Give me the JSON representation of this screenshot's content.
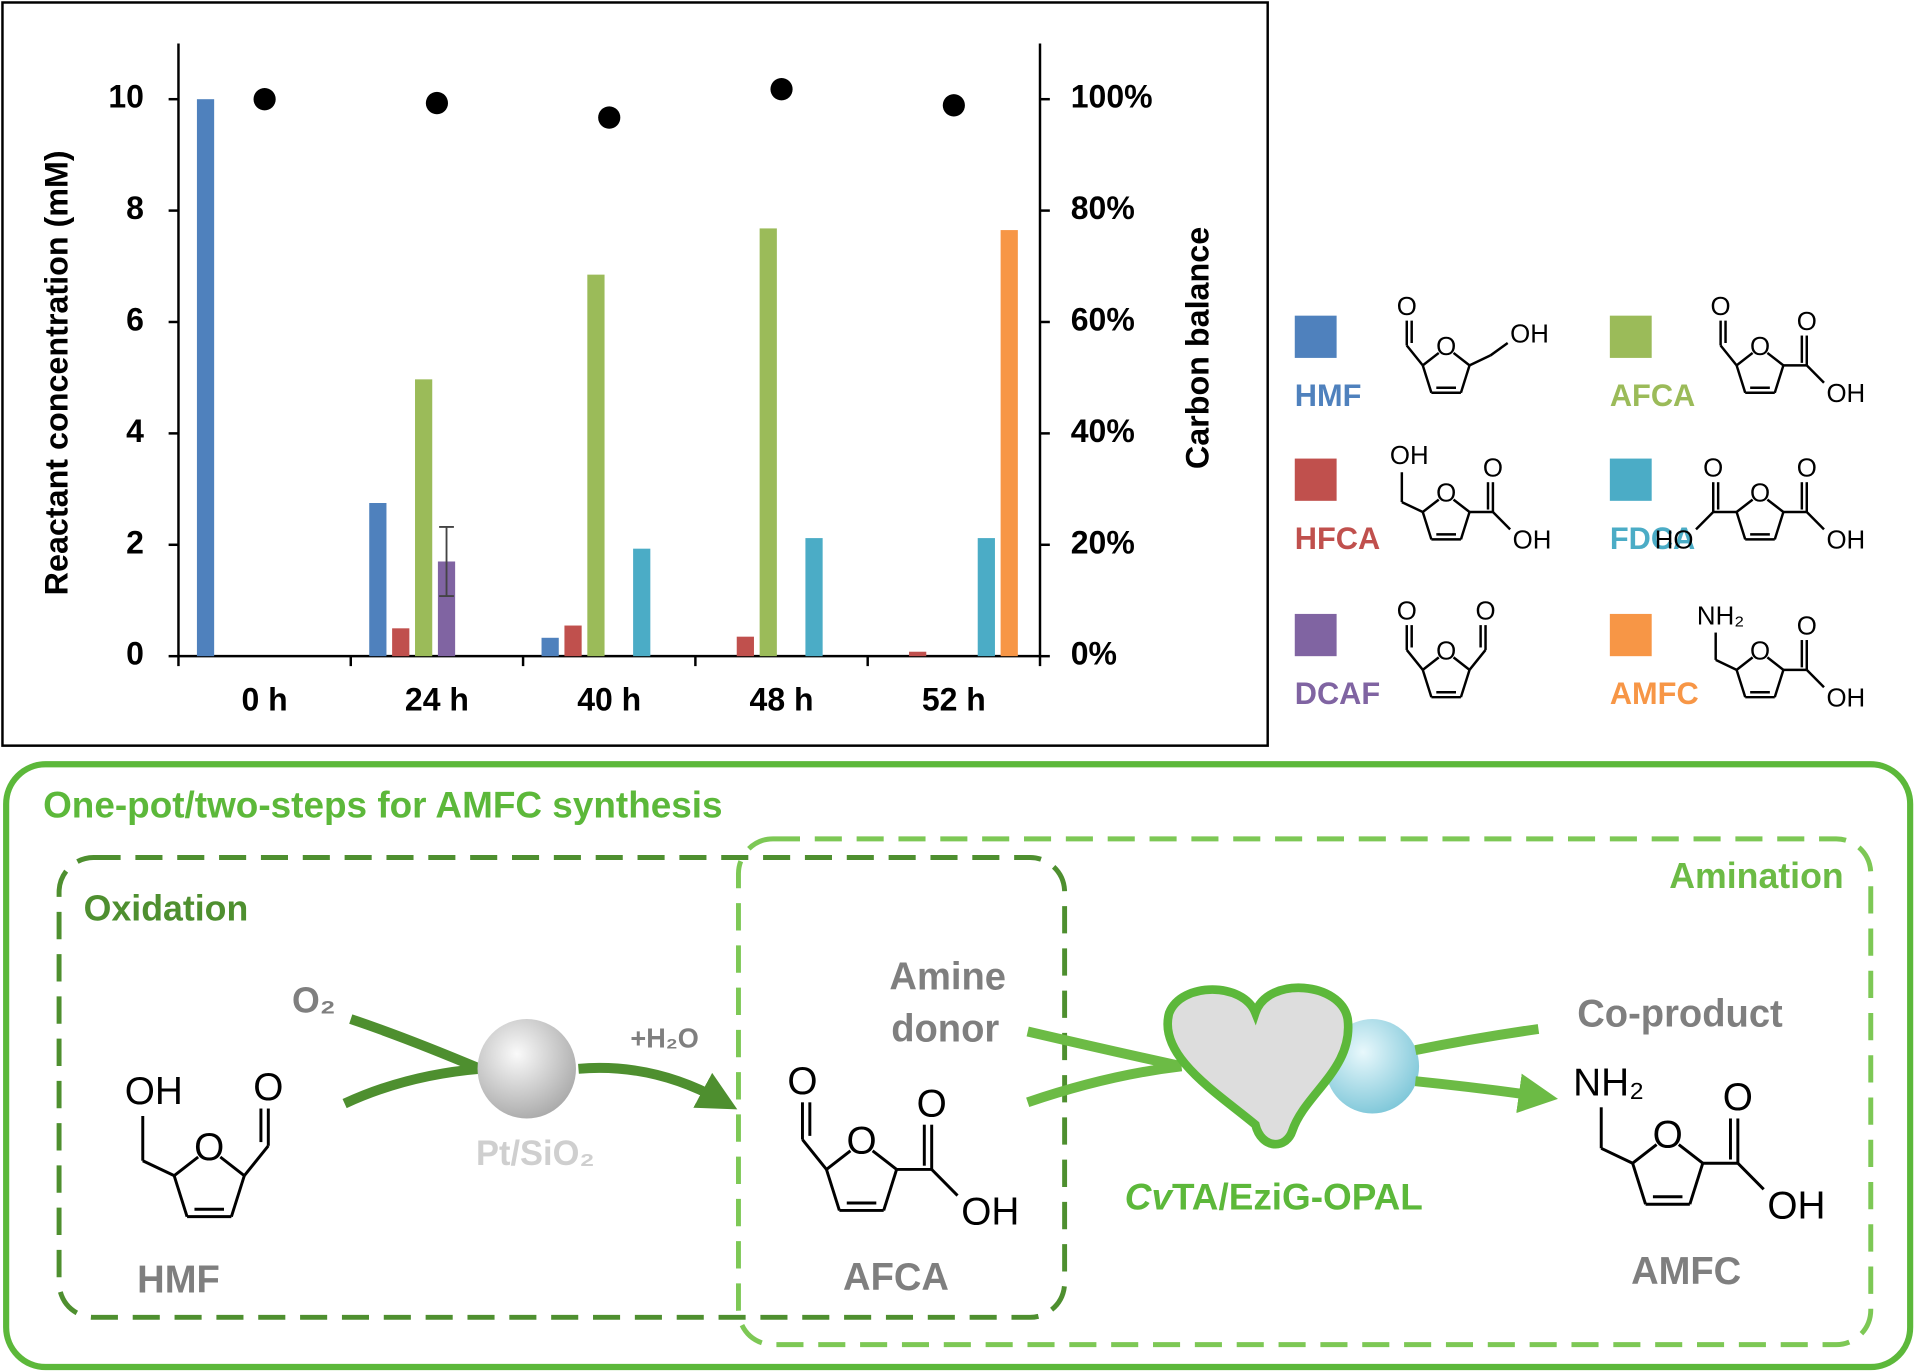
{
  "chart_data": {
    "type": "bar",
    "categories": [
      "0 h",
      "24 h",
      "40 h",
      "48 h",
      "52 h"
    ],
    "y_label": "Reactant concentration (mM)",
    "y2_label": "Carbon balance",
    "ylim": [
      0,
      11
    ],
    "yticks": [
      0,
      2,
      4,
      6,
      8,
      10
    ],
    "y2lim": [
      0,
      110
    ],
    "y2ticks": [
      {
        "value": 0,
        "label": "0%"
      },
      {
        "value": 20,
        "label": "20%"
      },
      {
        "value": 40,
        "label": "40%"
      },
      {
        "value": 60,
        "label": "60%"
      },
      {
        "value": 80,
        "label": "80%"
      },
      {
        "value": 100,
        "label": "100%"
      }
    ],
    "series": [
      {
        "name": "HMF",
        "color": "#4f81bd",
        "values": [
          10,
          2.75,
          0.33,
          0,
          0
        ]
      },
      {
        "name": "HFCA",
        "color": "#c0504d",
        "values": [
          0,
          0.5,
          0.55,
          0.35,
          0.08
        ]
      },
      {
        "name": "AFCA",
        "color": "#9bbb59",
        "values": [
          0,
          4.97,
          6.85,
          7.68,
          0
        ]
      },
      {
        "name": "DCAF",
        "color": "#8064a2",
        "values": [
          0,
          1.7,
          0,
          0,
          0
        ],
        "errors": [
          null,
          0.62,
          null,
          null,
          null
        ]
      },
      {
        "name": "FDCA",
        "color": "#4bacc6",
        "values": [
          0,
          0,
          1.93,
          2.12,
          2.12
        ]
      },
      {
        "name": "AMFC",
        "color": "#f79646",
        "values": [
          0,
          0,
          0,
          0,
          7.65
        ]
      }
    ],
    "points": {
      "axis": "y2",
      "color": "#000000",
      "values": [
        100,
        99.3,
        96.7,
        101.8,
        98.9
      ]
    },
    "structures": [
      [
        "O",
        "O",
        "OH"
      ],
      [
        "OH",
        "O",
        "O",
        "OH"
      ],
      [
        "O",
        "O",
        "O",
        "OH"
      ],
      [
        "O",
        "O",
        "O"
      ],
      [
        "O",
        "HO",
        "O",
        "O",
        "OH"
      ],
      [
        "NH₂",
        "O",
        "O",
        "OH"
      ]
    ]
  },
  "diagram": {
    "title": "One-pot/two-steps for AMFC synthesis",
    "oxidation": "Oxidation",
    "amination": "Amination",
    "oxygen": "O₂",
    "water": "+H₂O",
    "catalyst1": "Pt/SiO₂",
    "amine_donor": [
      "Amine",
      "donor"
    ],
    "co_product": "Co-product",
    "catalyst2": [
      "Cv",
      "TA/EziG-OPAL"
    ],
    "molecules": [
      {
        "name": "HMF",
        "atoms": [
          "OH",
          "O",
          "O"
        ]
      },
      {
        "name": "AFCA",
        "atoms": [
          "O",
          "O",
          "O",
          "OH"
        ]
      },
      {
        "name": "AMFC",
        "atoms": [
          "NH₂",
          "O",
          "O",
          "OH"
        ]
      }
    ]
  }
}
